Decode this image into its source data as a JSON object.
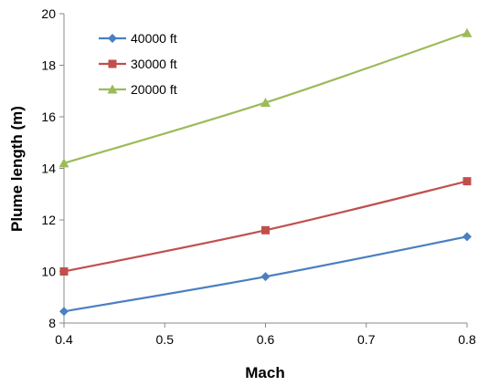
{
  "chart_data": {
    "type": "line",
    "title": "",
    "xlabel": "Mach",
    "ylabel": "Plume length (m)",
    "x": [
      0.4,
      0.6,
      0.8
    ],
    "xlim": [
      0.4,
      0.8
    ],
    "ylim": [
      8,
      20
    ],
    "xticks": [
      "0.4",
      "0.5",
      "0.6",
      "0.7",
      "0.8"
    ],
    "yticks": [
      "8",
      "10",
      "12",
      "14",
      "16",
      "18",
      "20"
    ],
    "grid": false,
    "legend_position": "top-left",
    "series": [
      {
        "name": "40000 ft",
        "values": [
          8.45,
          9.8,
          11.35
        ],
        "color": "#4a7fc1",
        "marker": "diamond"
      },
      {
        "name": "30000 ft",
        "values": [
          10.0,
          11.6,
          13.5
        ],
        "color": "#c0504d",
        "marker": "square"
      },
      {
        "name": "20000 ft",
        "values": [
          14.2,
          16.55,
          19.25
        ],
        "color": "#9bbb59",
        "marker": "triangle"
      }
    ]
  }
}
